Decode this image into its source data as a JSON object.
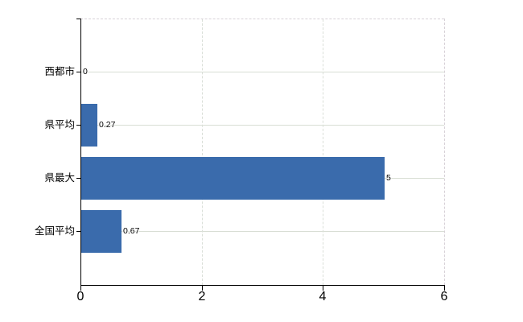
{
  "chart_data": {
    "type": "bar",
    "orientation": "horizontal",
    "title": "",
    "xlabel": "",
    "ylabel": "",
    "categories": [
      "西都市",
      "県平均",
      "県最大",
      "全国平均"
    ],
    "values": [
      0,
      0.27,
      5,
      0.67
    ],
    "value_labels": [
      "0",
      "0.27",
      "5",
      "0.67"
    ],
    "xlim": [
      0,
      6
    ],
    "x_ticks": [
      0,
      2,
      4,
      6
    ],
    "x_tick_labels": [
      "0",
      "2",
      "4",
      "6"
    ],
    "grid": "on",
    "legend": "none",
    "colors": {
      "bar_fill": "#3a6bac",
      "axis": "#000000",
      "gridline_h": "#d8ded4",
      "gridline_v": "#dadfd8",
      "plot_border_dashed": "#d8d2d8",
      "text": "#000000",
      "background": "#ffffff"
    }
  }
}
